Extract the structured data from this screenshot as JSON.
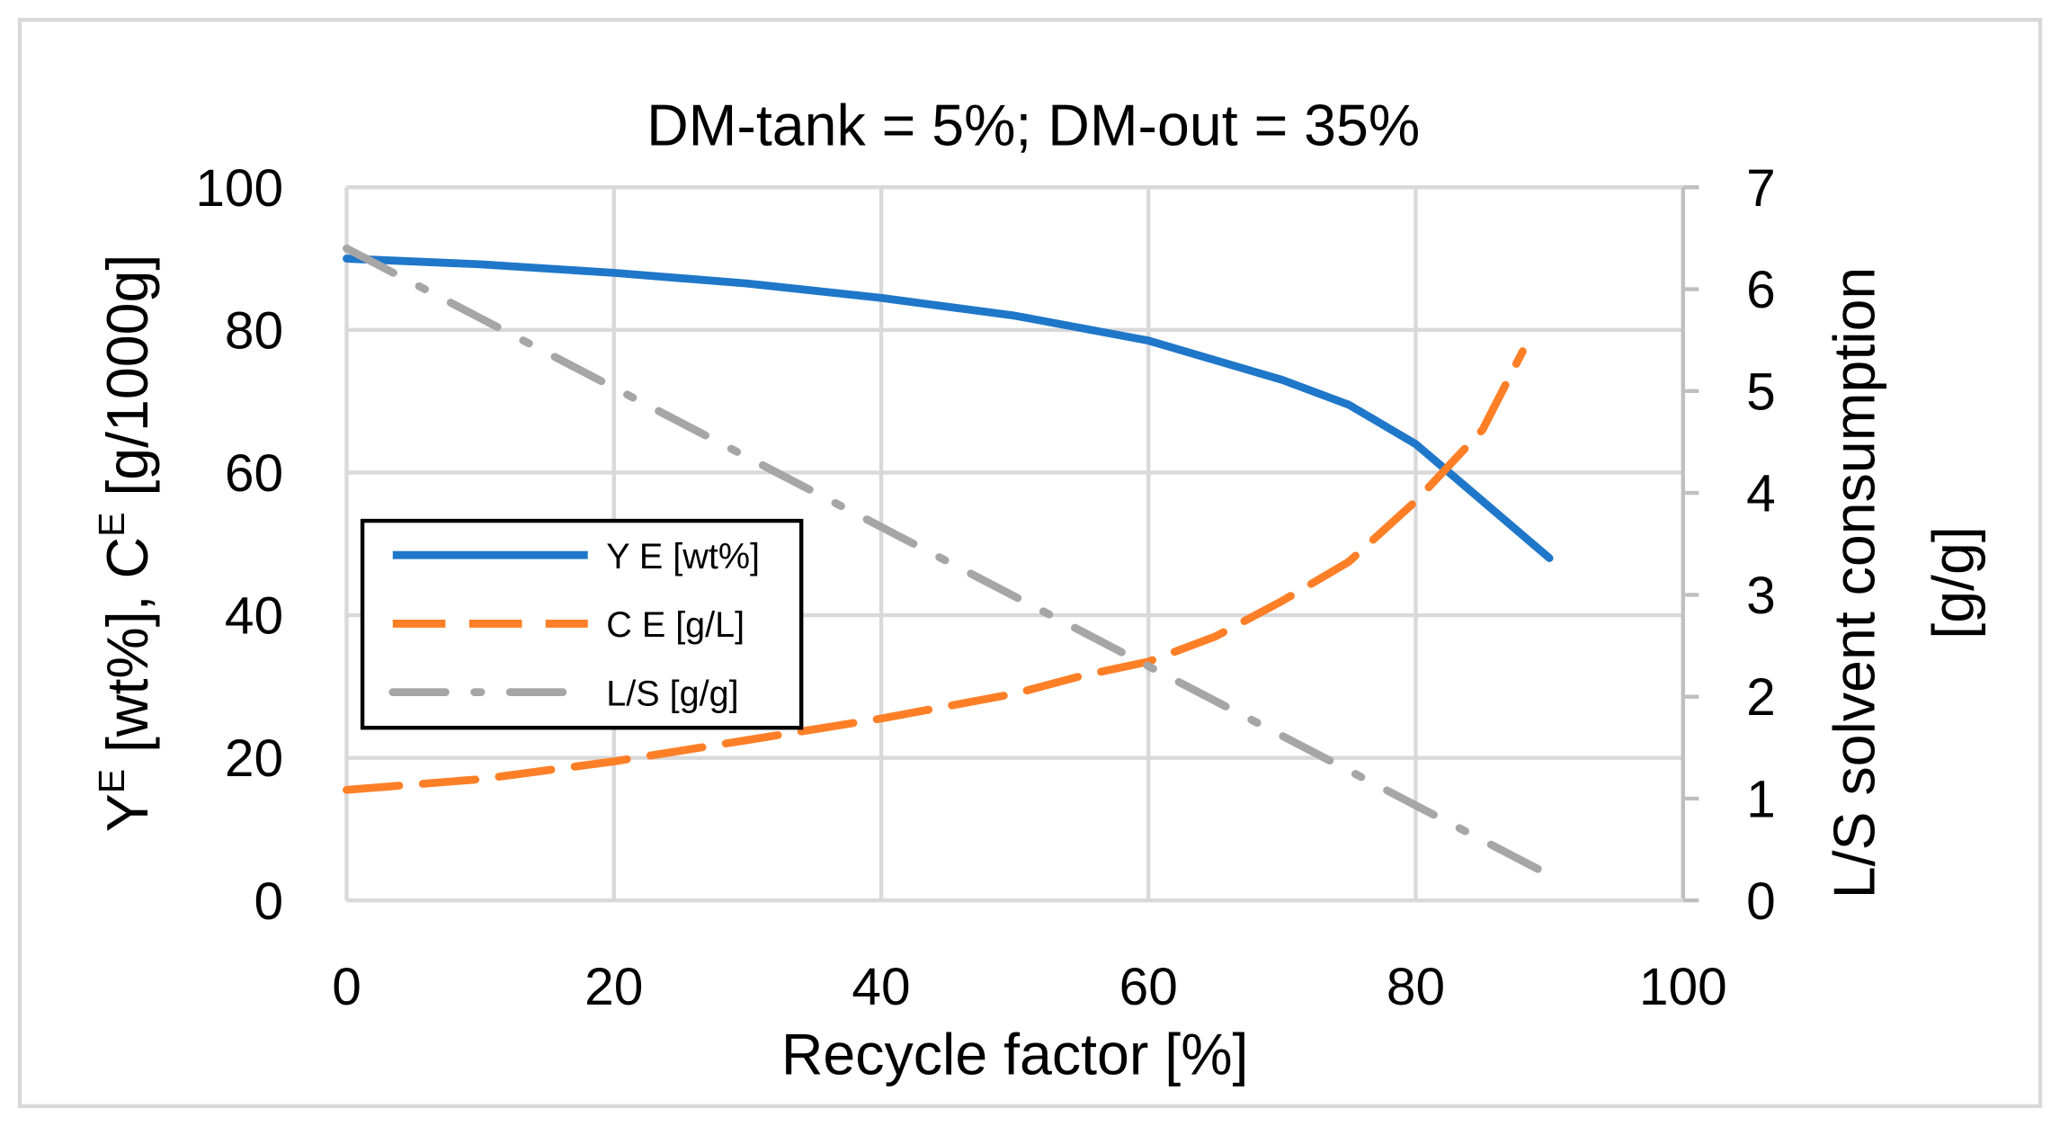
{
  "chart_data": {
    "type": "line",
    "title": "DM-tank = 5%; DM-out = 35%",
    "xlabel": "Recycle factor [%]",
    "ylabel_left": "Y^E [wt%],  C^E [g/1000g]",
    "ylabel_left_parts": {
      "y": "Y",
      "e1": "E",
      "mid": " [wt%],  C",
      "e2": "E",
      "end": " [g/1000g]"
    },
    "ylabel_right_line1": "L/S solvent consumption",
    "ylabel_right_line2": "[g/g]",
    "xlim": [
      0,
      100
    ],
    "ylim_left": [
      0,
      100
    ],
    "ylim_right": [
      0,
      7
    ],
    "xticks": [
      "0",
      "20",
      "40",
      "60",
      "80",
      "100"
    ],
    "yticks_left": [
      "0",
      "20",
      "40",
      "60",
      "80",
      "100"
    ],
    "yticks_right": [
      "0",
      "1",
      "2",
      "3",
      "4",
      "5",
      "6",
      "7"
    ],
    "grid": true,
    "legend_position": "center-left",
    "series": [
      {
        "name": "Y E [wt%]",
        "axis": "left",
        "color": "#1f77c9",
        "style": "solid",
        "x": [
          0,
          10,
          20,
          30,
          40,
          50,
          60,
          70,
          75,
          80,
          85,
          90
        ],
        "y": [
          90,
          89.2,
          88,
          86.5,
          84.5,
          82,
          78.5,
          73,
          69.5,
          64,
          56,
          48
        ]
      },
      {
        "name": "C E [g/L]",
        "axis": "left",
        "color": "#ff7f27",
        "style": "dash",
        "x": [
          0,
          10,
          20,
          30,
          40,
          50,
          55,
          60,
          65,
          70,
          75,
          80,
          85,
          88
        ],
        "y": [
          15.5,
          17,
          19.5,
          22.5,
          25.5,
          29,
          31.5,
          33.5,
          37,
          42,
          47.5,
          56,
          66,
          77
        ]
      },
      {
        "name": "L/S [g/g]",
        "axis": "right",
        "color": "#a6a6a6",
        "style": "dashdotdot",
        "x": [
          0,
          90
        ],
        "y": [
          6.4,
          0.25
        ]
      }
    ]
  }
}
